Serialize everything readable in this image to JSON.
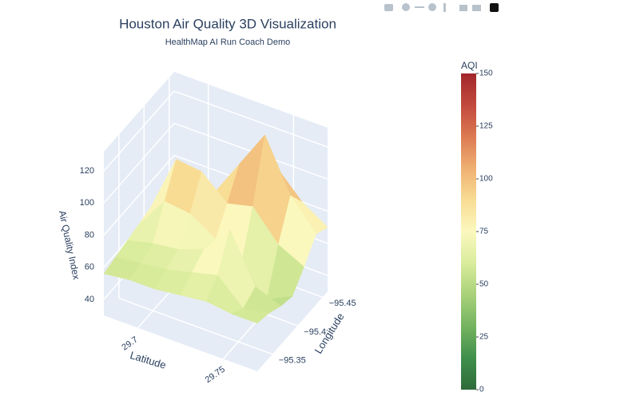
{
  "chart_data": {
    "type": "surface",
    "title": "Houston Air Quality 3D Visualization",
    "subtitle": "HealthMap AI Run Coach Demo",
    "x_label": "Latitude",
    "y_label": "Longitude",
    "z_label": "Air Quality Index",
    "x": [
      29.68,
      29.695,
      29.71,
      29.725,
      29.74,
      29.755,
      29.77
    ],
    "y": [
      -95.46,
      -95.437,
      -95.413,
      -95.39,
      -95.367,
      -95.343,
      -95.32
    ],
    "z": [
      [
        58,
        60,
        64,
        62,
        60,
        58,
        56
      ],
      [
        62,
        70,
        100,
        82,
        64,
        60,
        58
      ],
      [
        64,
        76,
        98,
        80,
        66,
        62,
        58
      ],
      [
        72,
        100,
        84,
        70,
        72,
        66,
        60
      ],
      [
        96,
        124,
        88,
        60,
        90,
        70,
        62
      ],
      [
        80,
        92,
        70,
        44,
        60,
        55,
        60
      ],
      [
        70,
        74,
        62,
        52,
        54,
        58,
        60
      ]
    ],
    "xlim": [
      29.68,
      29.77
    ],
    "ylim": [
      -95.46,
      -95.32
    ],
    "zlim": [
      30,
      132
    ],
    "xticks": [
      29.7,
      29.75
    ],
    "yticks": [
      {
        "value": -95.45,
        "label": "−95.45"
      },
      {
        "value": -95.4,
        "label": "−95.4"
      },
      {
        "value": -95.35,
        "label": "−95.35"
      }
    ],
    "zticks": [
      40,
      60,
      80,
      100,
      120
    ],
    "colorscale": [
      "#2f6b3a",
      "#3f8f4c",
      "#74b35f",
      "#a9d17a",
      "#d9ec9c",
      "#fbf8be",
      "#f8dc94",
      "#efb072",
      "#dc7a52",
      "#c2493d",
      "#a2272c"
    ],
    "colorbar": {
      "title": "AQI",
      "lim": [
        0,
        150
      ],
      "ticks": [
        0,
        25,
        50,
        75,
        100,
        125,
        150
      ]
    },
    "grid": true
  }
}
